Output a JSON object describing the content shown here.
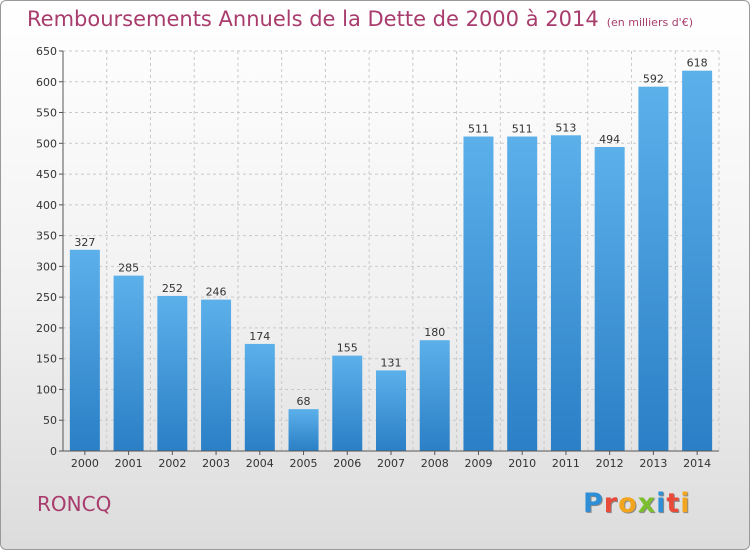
{
  "header": {
    "title": "Remboursements Annuels de la Dette de 2000 à 2014",
    "subtitle": "(en milliers d'€)"
  },
  "footer": {
    "town": "RONCQ",
    "brand": "Proxiti",
    "brand_letters": [
      {
        "ch": "P",
        "color": "#2e8fd6"
      },
      {
        "ch": "r",
        "color": "#e84b3a"
      },
      {
        "ch": "o",
        "color": "#f2a51e"
      },
      {
        "ch": "x",
        "color": "#7cbf2e"
      },
      {
        "ch": "i",
        "color": "#2e8fd6"
      },
      {
        "ch": "t",
        "color": "#e84b3a"
      },
      {
        "ch": "i",
        "color": "#f2a51e"
      }
    ]
  },
  "colors": {
    "title": "#a83c6c",
    "bar_top": "#5cb0ea",
    "bar_bottom": "#2a7fc6",
    "grid": "#c9c9c9",
    "axis": "#555555"
  },
  "chart_data": {
    "type": "bar",
    "title": "Remboursements Annuels de la Dette de 2000 à 2014",
    "subtitle": "(en milliers d'€)",
    "xlabel": "",
    "ylabel": "",
    "categories": [
      "2000",
      "2001",
      "2002",
      "2003",
      "2004",
      "2005",
      "2006",
      "2007",
      "2008",
      "2009",
      "2010",
      "2011",
      "2012",
      "2013",
      "2014"
    ],
    "values": [
      327,
      285,
      252,
      246,
      174,
      68,
      155,
      131,
      180,
      511,
      511,
      513,
      494,
      592,
      618
    ],
    "data_labels": [
      "327",
      "285",
      "252",
      "246",
      "174",
      "68",
      "155",
      "131",
      "180",
      "511",
      "511",
      "513",
      "494",
      "592",
      "618"
    ],
    "ylim": [
      0,
      650
    ],
    "yticks": [
      0,
      50,
      100,
      150,
      200,
      250,
      300,
      350,
      400,
      450,
      500,
      550,
      600,
      650
    ],
    "grid": true,
    "legend": "none"
  }
}
